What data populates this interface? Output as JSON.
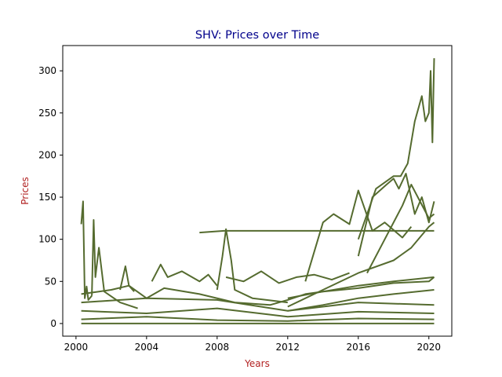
{
  "chart_data": {
    "type": "line",
    "title": "SHV: Prices over Time",
    "xlabel": "Years",
    "ylabel": "Prices",
    "xlim": [
      1999.25,
      2021.3
    ],
    "ylim": [
      -15,
      330
    ],
    "x_ticks": [
      "2000",
      "2004",
      "2008",
      "2012",
      "2016",
      "2020"
    ],
    "y_ticks": [
      "0",
      "50",
      "100",
      "150",
      "200",
      "250",
      "300"
    ],
    "grid": false,
    "legend": "none",
    "colors": {
      "series": "#556b2f",
      "title": "#00008b",
      "axis_label": "#b22222"
    },
    "series": [
      {
        "x": [
          2000.3,
          2000.4,
          2000.5,
          2000.6,
          2000.7,
          2000.9
        ],
        "y": [
          118,
          145,
          30,
          44,
          28,
          33
        ]
      },
      {
        "x": [
          2000.9,
          2001.0,
          2001.1,
          2001.3,
          2001.6,
          2002.5,
          2003.5
        ],
        "y": [
          33,
          123,
          55,
          90,
          38,
          25,
          18
        ]
      },
      {
        "x": [
          2000.3,
          2002.0,
          2003.0,
          2004.0,
          2005.0,
          2007.0,
          2009.0,
          2011.0,
          2012.0,
          2013.0,
          2014.0,
          2016.0,
          2018.0,
          2020.0,
          2020.3
        ],
        "y": [
          35,
          40,
          45,
          30,
          42,
          35,
          25,
          22,
          28,
          35,
          38,
          42,
          48,
          50,
          55
        ]
      },
      {
        "x": [
          2002.5,
          2002.8,
          2003.0,
          2003.3
        ],
        "y": [
          40,
          68,
          45,
          38
        ]
      },
      {
        "x": [
          2004.3,
          2004.8,
          2005.2,
          2006.0,
          2007.0,
          2007.5,
          2008.0
        ],
        "y": [
          50,
          70,
          55,
          62,
          50,
          58,
          45
        ]
      },
      {
        "x": [
          2007.0,
          2008.4,
          2012.0,
          2016.0,
          2020.0,
          2020.3
        ],
        "y": [
          108,
          110,
          110,
          110,
          110,
          110
        ]
      },
      {
        "x": [
          2008.0,
          2008.3,
          2008.5,
          2008.8,
          2009.0,
          2010.0,
          2012.0
        ],
        "y": [
          40,
          80,
          112,
          75,
          40,
          30,
          25
        ]
      },
      {
        "x": [
          2008.5,
          2009.5,
          2010.5,
          2011.5,
          2012.5,
          2013.5,
          2014.5,
          2015.5
        ],
        "y": [
          55,
          50,
          62,
          48,
          55,
          58,
          52,
          60
        ]
      },
      {
        "x": [
          2013.0,
          2014.0,
          2014.6,
          2015.5,
          2016.0,
          2016.8,
          2017.5,
          2018.5,
          2019.0
        ],
        "y": [
          50,
          120,
          130,
          118,
          158,
          110,
          120,
          102,
          115
        ]
      },
      {
        "x": [
          2016.0,
          2016.8,
          2017.6,
          2018.0,
          2018.3,
          2018.7,
          2019.2,
          2019.6,
          2020.0,
          2020.3
        ],
        "y": [
          80,
          150,
          165,
          172,
          160,
          178,
          130,
          150,
          120,
          145
        ]
      },
      {
        "x": [
          2016.0,
          2017.0,
          2018.0,
          2018.4,
          2018.8,
          2019.2,
          2019.6,
          2019.8,
          2020.0,
          2020.1,
          2020.2,
          2020.3
        ],
        "y": [
          100,
          160,
          175,
          175,
          190,
          240,
          270,
          240,
          250,
          300,
          215,
          315
        ]
      },
      {
        "x": [
          2016.5,
          2017.5,
          2018.5,
          2019.0,
          2019.5,
          2020.0,
          2020.3
        ],
        "y": [
          60,
          100,
          140,
          165,
          145,
          125,
          130
        ]
      },
      {
        "x": [
          2012.0,
          2014.0,
          2016.0,
          2018.0,
          2019.0,
          2020.0,
          2020.3
        ],
        "y": [
          20,
          40,
          60,
          75,
          90,
          115,
          120
        ]
      },
      {
        "x": [
          2000.3,
          2004.0,
          2008.0,
          2012.0,
          2016.0,
          2020.3
        ],
        "y": [
          5,
          8,
          4,
          3,
          6,
          5
        ]
      },
      {
        "x": [
          2000.3,
          2004.0,
          2008.0,
          2012.0,
          2016.0,
          2020.3
        ],
        "y": [
          15,
          12,
          18,
          8,
          14,
          12
        ]
      },
      {
        "x": [
          2000.3,
          2004.0,
          2008.0,
          2012.0,
          2016.0,
          2020.3
        ],
        "y": [
          25,
          30,
          28,
          15,
          25,
          22
        ]
      },
      {
        "x": [
          2012.0,
          2014.0,
          2016.0,
          2018.0,
          2020.3
        ],
        "y": [
          30,
          38,
          45,
          50,
          55
        ]
      },
      {
        "x": [
          2012.0,
          2014.0,
          2016.0,
          2018.0,
          2020.3
        ],
        "y": [
          15,
          22,
          30,
          35,
          40
        ]
      },
      {
        "x": [
          2000.3,
          2020.3
        ],
        "y": [
          0,
          0
        ]
      }
    ]
  }
}
